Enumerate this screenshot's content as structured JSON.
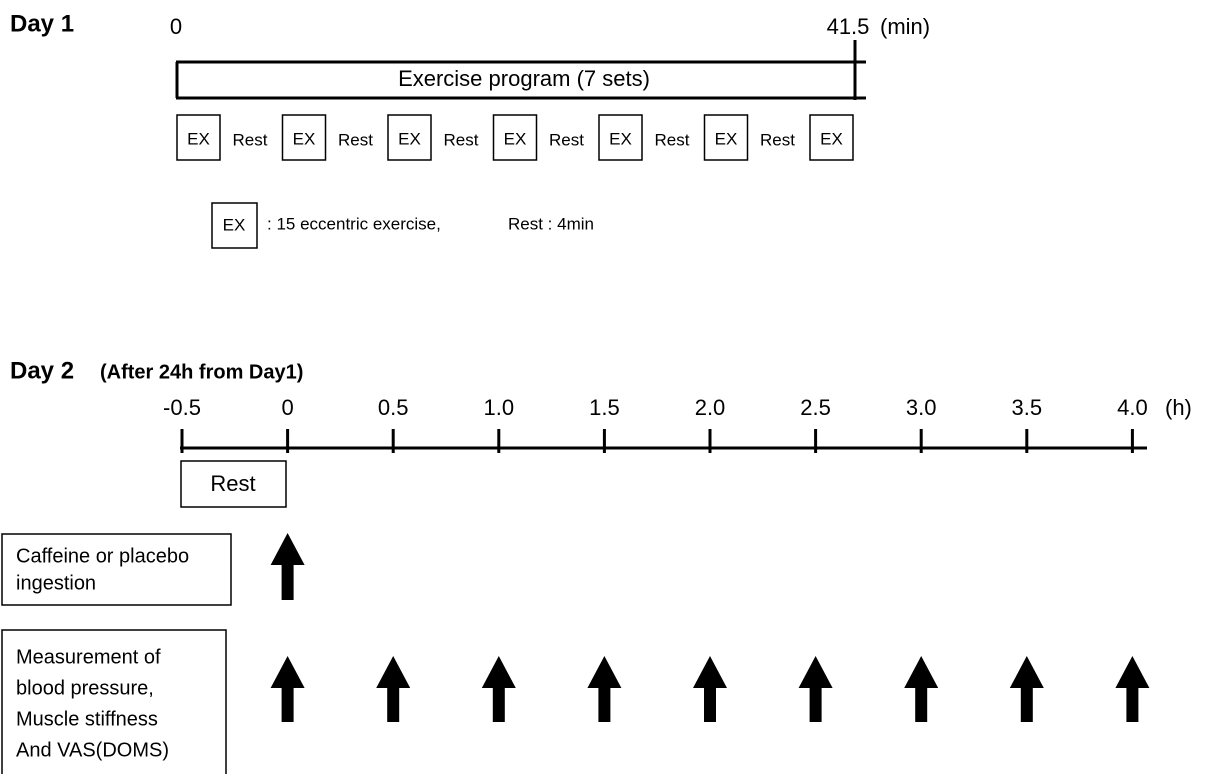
{
  "day1": {
    "title": "Day 1",
    "start": "0",
    "end": "41.5",
    "unit": "(min)",
    "program": "Exercise program (7 sets)",
    "blocks": [
      "EX",
      "Rest",
      "EX",
      "Rest",
      "EX",
      "Rest",
      "EX",
      "Rest",
      "EX",
      "Rest",
      "EX",
      "Rest",
      "EX"
    ],
    "legend": {
      "box": "EX",
      "text": ":  15 eccentric exercise,",
      "rest": "Rest :  4min"
    }
  },
  "day2": {
    "title": "Day 2",
    "subtitle": "(After 24h from Day1)",
    "ticks": [
      "-0.5",
      "0",
      "0.5",
      "1.0",
      "1.5",
      "2.0",
      "2.5",
      "3.0",
      "3.5",
      "4.0"
    ],
    "unit": "(h)",
    "rest": "Rest",
    "caffeine": [
      "Caffeine or placebo",
      "ingestion"
    ],
    "measurement": [
      "Measurement of",
      "blood pressure,",
      "Muscle stiffness",
      "And VAS(DOMS)"
    ]
  }
}
